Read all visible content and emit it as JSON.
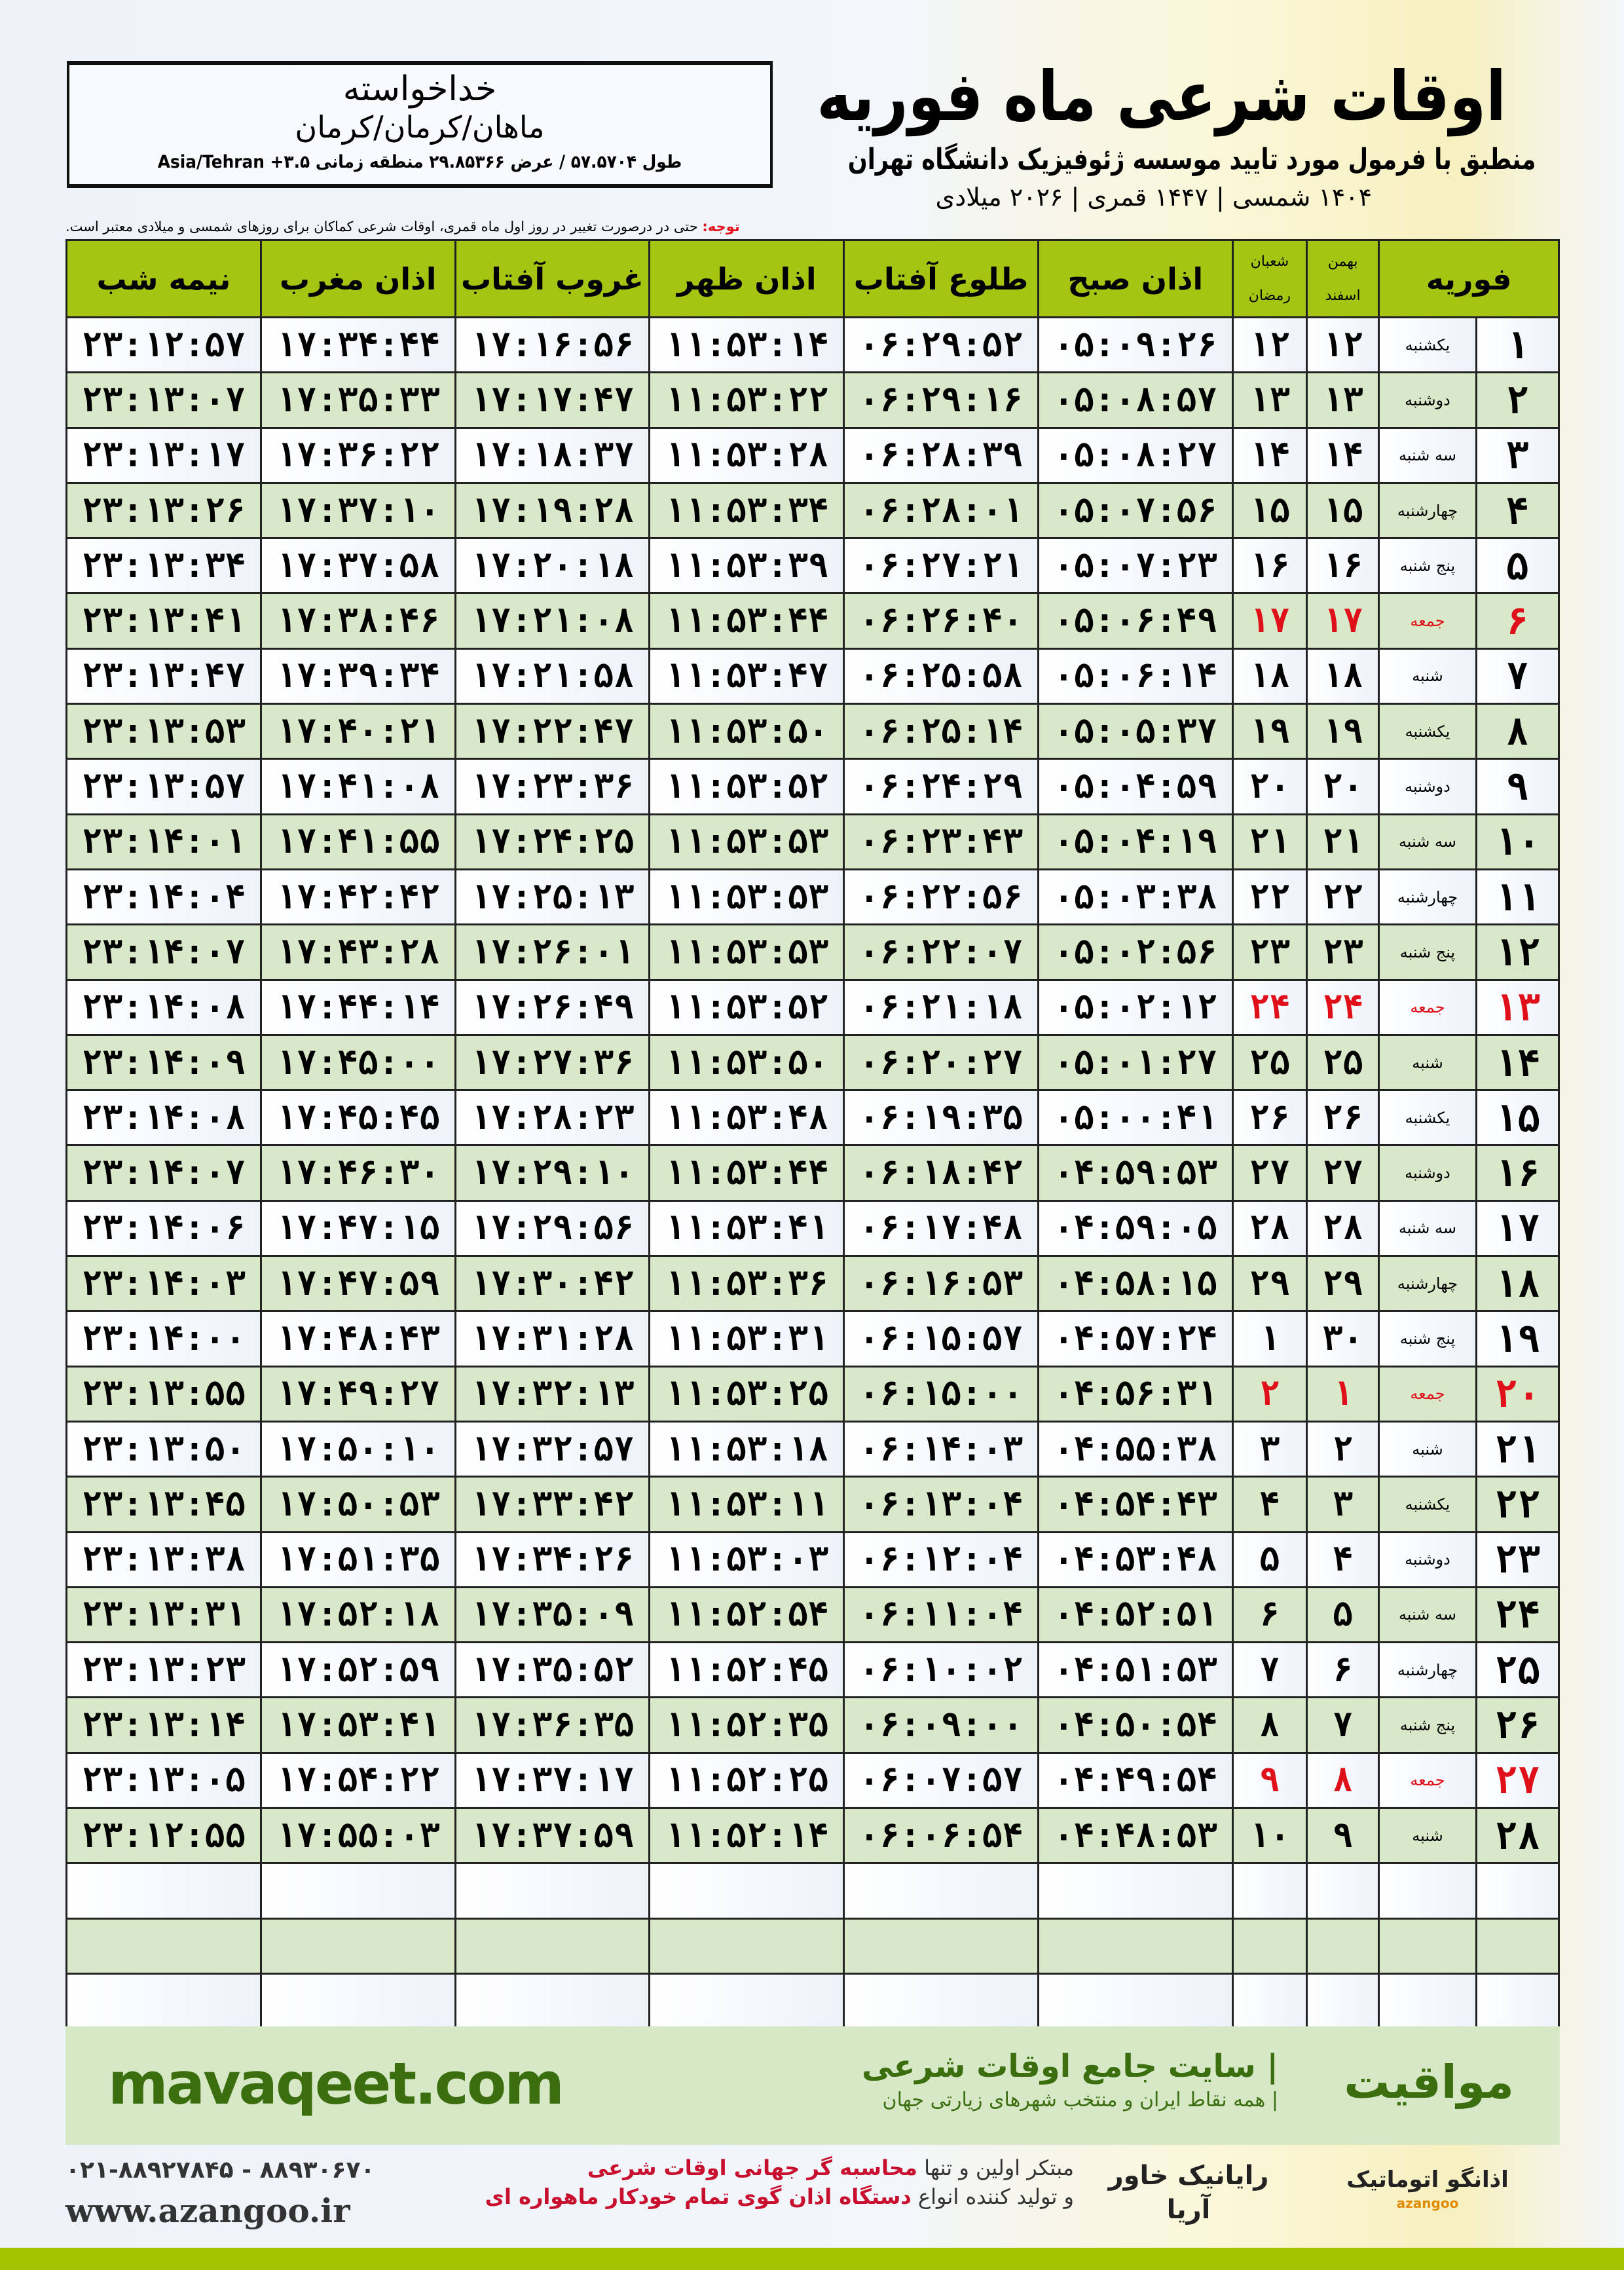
{
  "header": {
    "title": "اوقات شرعی ماه فوریه",
    "subtitle": "منطبق با فرمول مورد تایید موسسه ژئوفیزیک دانشگاه تهران",
    "year": "۱۴۰۴ شمسی | ۱۴۴۷ قمری | ۲۰۲۶ میلادی"
  },
  "location": {
    "name": "خداخواسته",
    "region": "ماهان/کرمان/کرمان",
    "coords": "طول ۵۷.۵۷۰۴ / عرض ۲۹.۸۵۳۶۶ منطقه زمانی ۳.۵+ Asia/Tehran"
  },
  "note": {
    "label": "توجه:",
    "text": " حتی در درصورت تغییر در روز اول ماه قمری، اوقات شرعی کماکان برای روزهای شمسی و میلادی معتبر است."
  },
  "columns": {
    "day": "فوریه",
    "shamsi_top": "بهمن",
    "shamsi_bottom": "اسفند",
    "hijri_top": "شعبان",
    "hijri_bottom": "رمضان",
    "sobh": "اذان صبح",
    "tolu": "طلوع آفتاب",
    "zohr": "اذان ظهر",
    "ghorub": "غروب آفتاب",
    "maghrib": "اذان مغرب",
    "nime": "نیمه شب"
  },
  "colors": {
    "header": "#a6c412",
    "even_row": "#d9e8c8",
    "friday": "#e0101a",
    "brand": "#3a6e0f"
  },
  "rows": [
    [
      "۱",
      "یکشنبه",
      "۱۲",
      "۱۲",
      "۰۵:۰۹:۲۶",
      "۰۶:۲۹:۵۲",
      "۱۱:۵۳:۱۴",
      "۱۷:۱۶:۵۶",
      "۱۷:۳۴:۴۴",
      "۲۳:۱۲:۵۷"
    ],
    [
      "۲",
      "دوشنبه",
      "۱۳",
      "۱۳",
      "۰۵:۰۸:۵۷",
      "۰۶:۲۹:۱۶",
      "۱۱:۵۳:۲۲",
      "۱۷:۱۷:۴۷",
      "۱۷:۳۵:۳۳",
      "۲۳:۱۳:۰۷"
    ],
    [
      "۳",
      "سه شنبه",
      "۱۴",
      "۱۴",
      "۰۵:۰۸:۲۷",
      "۰۶:۲۸:۳۹",
      "۱۱:۵۳:۲۸",
      "۱۷:۱۸:۳۷",
      "۱۷:۳۶:۲۲",
      "۲۳:۱۳:۱۷"
    ],
    [
      "۴",
      "چهارشنبه",
      "۱۵",
      "۱۵",
      "۰۵:۰۷:۵۶",
      "۰۶:۲۸:۰۱",
      "۱۱:۵۳:۳۴",
      "۱۷:۱۹:۲۸",
      "۱۷:۳۷:۱۰",
      "۲۳:۱۳:۲۶"
    ],
    [
      "۵",
      "پنج شنبه",
      "۱۶",
      "۱۶",
      "۰۵:۰۷:۲۳",
      "۰۶:۲۷:۲۱",
      "۱۱:۵۳:۳۹",
      "۱۷:۲۰:۱۸",
      "۱۷:۳۷:۵۸",
      "۲۳:۱۳:۳۴"
    ],
    [
      "۶",
      "جمعه",
      "۱۷",
      "۱۷",
      "۰۵:۰۶:۴۹",
      "۰۶:۲۶:۴۰",
      "۱۱:۵۳:۴۴",
      "۱۷:۲۱:۰۸",
      "۱۷:۳۸:۴۶",
      "۲۳:۱۳:۴۱"
    ],
    [
      "۷",
      "شنبه",
      "۱۸",
      "۱۸",
      "۰۵:۰۶:۱۴",
      "۰۶:۲۵:۵۸",
      "۱۱:۵۳:۴۷",
      "۱۷:۲۱:۵۸",
      "۱۷:۳۹:۳۴",
      "۲۳:۱۳:۴۷"
    ],
    [
      "۸",
      "یکشنبه",
      "۱۹",
      "۱۹",
      "۰۵:۰۵:۳۷",
      "۰۶:۲۵:۱۴",
      "۱۱:۵۳:۵۰",
      "۱۷:۲۲:۴۷",
      "۱۷:۴۰:۲۱",
      "۲۳:۱۳:۵۳"
    ],
    [
      "۹",
      "دوشنبه",
      "۲۰",
      "۲۰",
      "۰۵:۰۴:۵۹",
      "۰۶:۲۴:۲۹",
      "۱۱:۵۳:۵۲",
      "۱۷:۲۳:۳۶",
      "۱۷:۴۱:۰۸",
      "۲۳:۱۳:۵۷"
    ],
    [
      "۱۰",
      "سه شنبه",
      "۲۱",
      "۲۱",
      "۰۵:۰۴:۱۹",
      "۰۶:۲۳:۴۳",
      "۱۱:۵۳:۵۳",
      "۱۷:۲۴:۲۵",
      "۱۷:۴۱:۵۵",
      "۲۳:۱۴:۰۱"
    ],
    [
      "۱۱",
      "چهارشنبه",
      "۲۲",
      "۲۲",
      "۰۵:۰۳:۳۸",
      "۰۶:۲۲:۵۶",
      "۱۱:۵۳:۵۳",
      "۱۷:۲۵:۱۳",
      "۱۷:۴۲:۴۲",
      "۲۳:۱۴:۰۴"
    ],
    [
      "۱۲",
      "پنج شنبه",
      "۲۳",
      "۲۳",
      "۰۵:۰۲:۵۶",
      "۰۶:۲۲:۰۷",
      "۱۱:۵۳:۵۳",
      "۱۷:۲۶:۰۱",
      "۱۷:۴۳:۲۸",
      "۲۳:۱۴:۰۷"
    ],
    [
      "۱۳",
      "جمعه",
      "۲۴",
      "۲۴",
      "۰۵:۰۲:۱۲",
      "۰۶:۲۱:۱۸",
      "۱۱:۵۳:۵۲",
      "۱۷:۲۶:۴۹",
      "۱۷:۴۴:۱۴",
      "۲۳:۱۴:۰۸"
    ],
    [
      "۱۴",
      "شنبه",
      "۲۵",
      "۲۵",
      "۰۵:۰۱:۲۷",
      "۰۶:۲۰:۲۷",
      "۱۱:۵۳:۵۰",
      "۱۷:۲۷:۳۶",
      "۱۷:۴۵:۰۰",
      "۲۳:۱۴:۰۹"
    ],
    [
      "۱۵",
      "یکشنبه",
      "۲۶",
      "۲۶",
      "۰۵:۰۰:۴۱",
      "۰۶:۱۹:۳۵",
      "۱۱:۵۳:۴۸",
      "۱۷:۲۸:۲۳",
      "۱۷:۴۵:۴۵",
      "۲۳:۱۴:۰۸"
    ],
    [
      "۱۶",
      "دوشنبه",
      "۲۷",
      "۲۷",
      "۰۴:۵۹:۵۳",
      "۰۶:۱۸:۴۲",
      "۱۱:۵۳:۴۴",
      "۱۷:۲۹:۱۰",
      "۱۷:۴۶:۳۰",
      "۲۳:۱۴:۰۷"
    ],
    [
      "۱۷",
      "سه شنبه",
      "۲۸",
      "۲۸",
      "۰۴:۵۹:۰۵",
      "۰۶:۱۷:۴۸",
      "۱۱:۵۳:۴۱",
      "۱۷:۲۹:۵۶",
      "۱۷:۴۷:۱۵",
      "۲۳:۱۴:۰۶"
    ],
    [
      "۱۸",
      "چهارشنبه",
      "۲۹",
      "۲۹",
      "۰۴:۵۸:۱۵",
      "۰۶:۱۶:۵۳",
      "۱۱:۵۳:۳۶",
      "۱۷:۳۰:۴۲",
      "۱۷:۴۷:۵۹",
      "۲۳:۱۴:۰۳"
    ],
    [
      "۱۹",
      "پنج شنبه",
      "۳۰",
      "۱",
      "۰۴:۵۷:۲۴",
      "۰۶:۱۵:۵۷",
      "۱۱:۵۳:۳۱",
      "۱۷:۳۱:۲۸",
      "۱۷:۴۸:۴۳",
      "۲۳:۱۴:۰۰"
    ],
    [
      "۲۰",
      "جمعه",
      "۱",
      "۲",
      "۰۴:۵۶:۳۱",
      "۰۶:۱۵:۰۰",
      "۱۱:۵۳:۲۵",
      "۱۷:۳۲:۱۳",
      "۱۷:۴۹:۲۷",
      "۲۳:۱۳:۵۵"
    ],
    [
      "۲۱",
      "شنبه",
      "۲",
      "۳",
      "۰۴:۵۵:۳۸",
      "۰۶:۱۴:۰۳",
      "۱۱:۵۳:۱۸",
      "۱۷:۳۲:۵۷",
      "۱۷:۵۰:۱۰",
      "۲۳:۱۳:۵۰"
    ],
    [
      "۲۲",
      "یکشنبه",
      "۳",
      "۴",
      "۰۴:۵۴:۴۳",
      "۰۶:۱۳:۰۴",
      "۱۱:۵۳:۱۱",
      "۱۷:۳۳:۴۲",
      "۱۷:۵۰:۵۳",
      "۲۳:۱۳:۴۵"
    ],
    [
      "۲۳",
      "دوشنبه",
      "۴",
      "۵",
      "۰۴:۵۳:۴۸",
      "۰۶:۱۲:۰۴",
      "۱۱:۵۳:۰۳",
      "۱۷:۳۴:۲۶",
      "۱۷:۵۱:۳۵",
      "۲۳:۱۳:۳۸"
    ],
    [
      "۲۴",
      "سه شنبه",
      "۵",
      "۶",
      "۰۴:۵۲:۵۱",
      "۰۶:۱۱:۰۴",
      "۱۱:۵۲:۵۴",
      "۱۷:۳۵:۰۹",
      "۱۷:۵۲:۱۸",
      "۲۳:۱۳:۳۱"
    ],
    [
      "۲۵",
      "چهارشنبه",
      "۶",
      "۷",
      "۰۴:۵۱:۵۳",
      "۰۶:۱۰:۰۲",
      "۱۱:۵۲:۴۵",
      "۱۷:۳۵:۵۲",
      "۱۷:۵۲:۵۹",
      "۲۳:۱۳:۲۳"
    ],
    [
      "۲۶",
      "پنج شنبه",
      "۷",
      "۸",
      "۰۴:۵۰:۵۴",
      "۰۶:۰۹:۰۰",
      "۱۱:۵۲:۳۵",
      "۱۷:۳۶:۳۵",
      "۱۷:۵۳:۴۱",
      "۲۳:۱۳:۱۴"
    ],
    [
      "۲۷",
      "جمعه",
      "۸",
      "۹",
      "۰۴:۴۹:۵۴",
      "۰۶:۰۷:۵۷",
      "۱۱:۵۲:۲۵",
      "۱۷:۳۷:۱۷",
      "۱۷:۵۴:۲۲",
      "۲۳:۱۳:۰۵"
    ],
    [
      "۲۸",
      "شنبه",
      "۹",
      "۱۰",
      "۰۴:۴۸:۵۳",
      "۰۶:۰۶:۵۴",
      "۱۱:۵۲:۱۴",
      "۱۷:۳۷:۵۹",
      "۱۷:۵۵:۰۳",
      "۲۳:۱۲:۵۵"
    ]
  ],
  "friday_label": "جمعه",
  "empty_rows": 3,
  "footer": {
    "brand_fa": "مواقیت",
    "brand_desc": "| سایت جامع اوقات شرعی",
    "brand_sub": " | همه نقاط ایران و منتخب شهرهای زیارتی جهان",
    "site": "mavaqeet.com",
    "phone": "۰۲۱-۸۸۹۲۷۸۴۵ - ۸۸۹۳۰۶۷۰",
    "web": "www.azangoo.ir",
    "slogan1_a": "مبتکر اولین و تنها ",
    "slogan1_b": "محاسبه گر جهانی اوقات شرعی",
    "slogan2_a": "و تولید کننده انواع ",
    "slogan2_b": "دستگاه اذان گوی تمام خودکار ماهواره ای",
    "logo_rayanik": "رایانیک خاور آریا",
    "logo_azangoo": "اذانگو اتوماتیک",
    "logo_azangoo_sub": "azangoo"
  }
}
